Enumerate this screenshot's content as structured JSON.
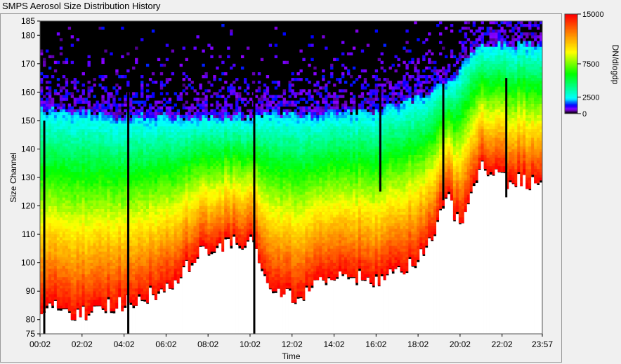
{
  "window": {
    "title": "SMPS Aerosol Size Distribution History"
  },
  "chart_data": {
    "type": "heatmap",
    "title": "SMPS Aerosol Size Distribution History",
    "xlabel": "Time",
    "ylabel": "Size Channel",
    "x_ticks": [
      "00:02",
      "02:02",
      "04:02",
      "06:02",
      "08:02",
      "10:02",
      "12:02",
      "14:02",
      "16:02",
      "18:02",
      "20:02",
      "22:02",
      "23:57"
    ],
    "y_ticks": [
      75,
      80,
      90,
      100,
      110,
      120,
      130,
      140,
      150,
      160,
      170,
      180,
      185
    ],
    "ylim": [
      75,
      185
    ],
    "xlim_minutes": [
      2,
      1437
    ],
    "colorbar": {
      "label": "DN/dlogdp",
      "ticks": [
        0,
        2500,
        7500,
        15000
      ],
      "tick_labels": [
        "0",
        "2500",
        "7500",
        "15000"
      ],
      "range": [
        0,
        15000
      ]
    },
    "colorscale": [
      "#000000",
      "#8a00ff",
      "#0000ff",
      "#00ffff",
      "#00ff00",
      "#ffff00",
      "#ff8c00",
      "#ff0000",
      "#ffffff"
    ],
    "colors": {
      "background": "#000000",
      "saturated": "#ffffff",
      "gap_lines": "#000000"
    },
    "gap_lines_time": [
      "00:02",
      "04:02",
      "10:02",
      "16:02",
      "19:02",
      "22:02"
    ],
    "description_profile": {
      "times": [
        "00:02",
        "02:02",
        "04:02",
        "06:02",
        "07:15",
        "08:02",
        "10:02",
        "11:00",
        "12:02",
        "14:02",
        "16:02",
        "18:02",
        "19:30",
        "20:02",
        "21:00",
        "22:02",
        "23:57"
      ],
      "saturation_top_channel": [
        85,
        82,
        86,
        90,
        100,
        105,
        107,
        93,
        87,
        96,
        93,
        100,
        122,
        113,
        133,
        129,
        128
      ],
      "noise_top_channel": [
        153,
        153,
        151,
        151,
        150,
        151,
        151,
        152,
        152,
        152,
        153,
        158,
        163,
        168,
        176,
        176,
        176
      ]
    }
  }
}
